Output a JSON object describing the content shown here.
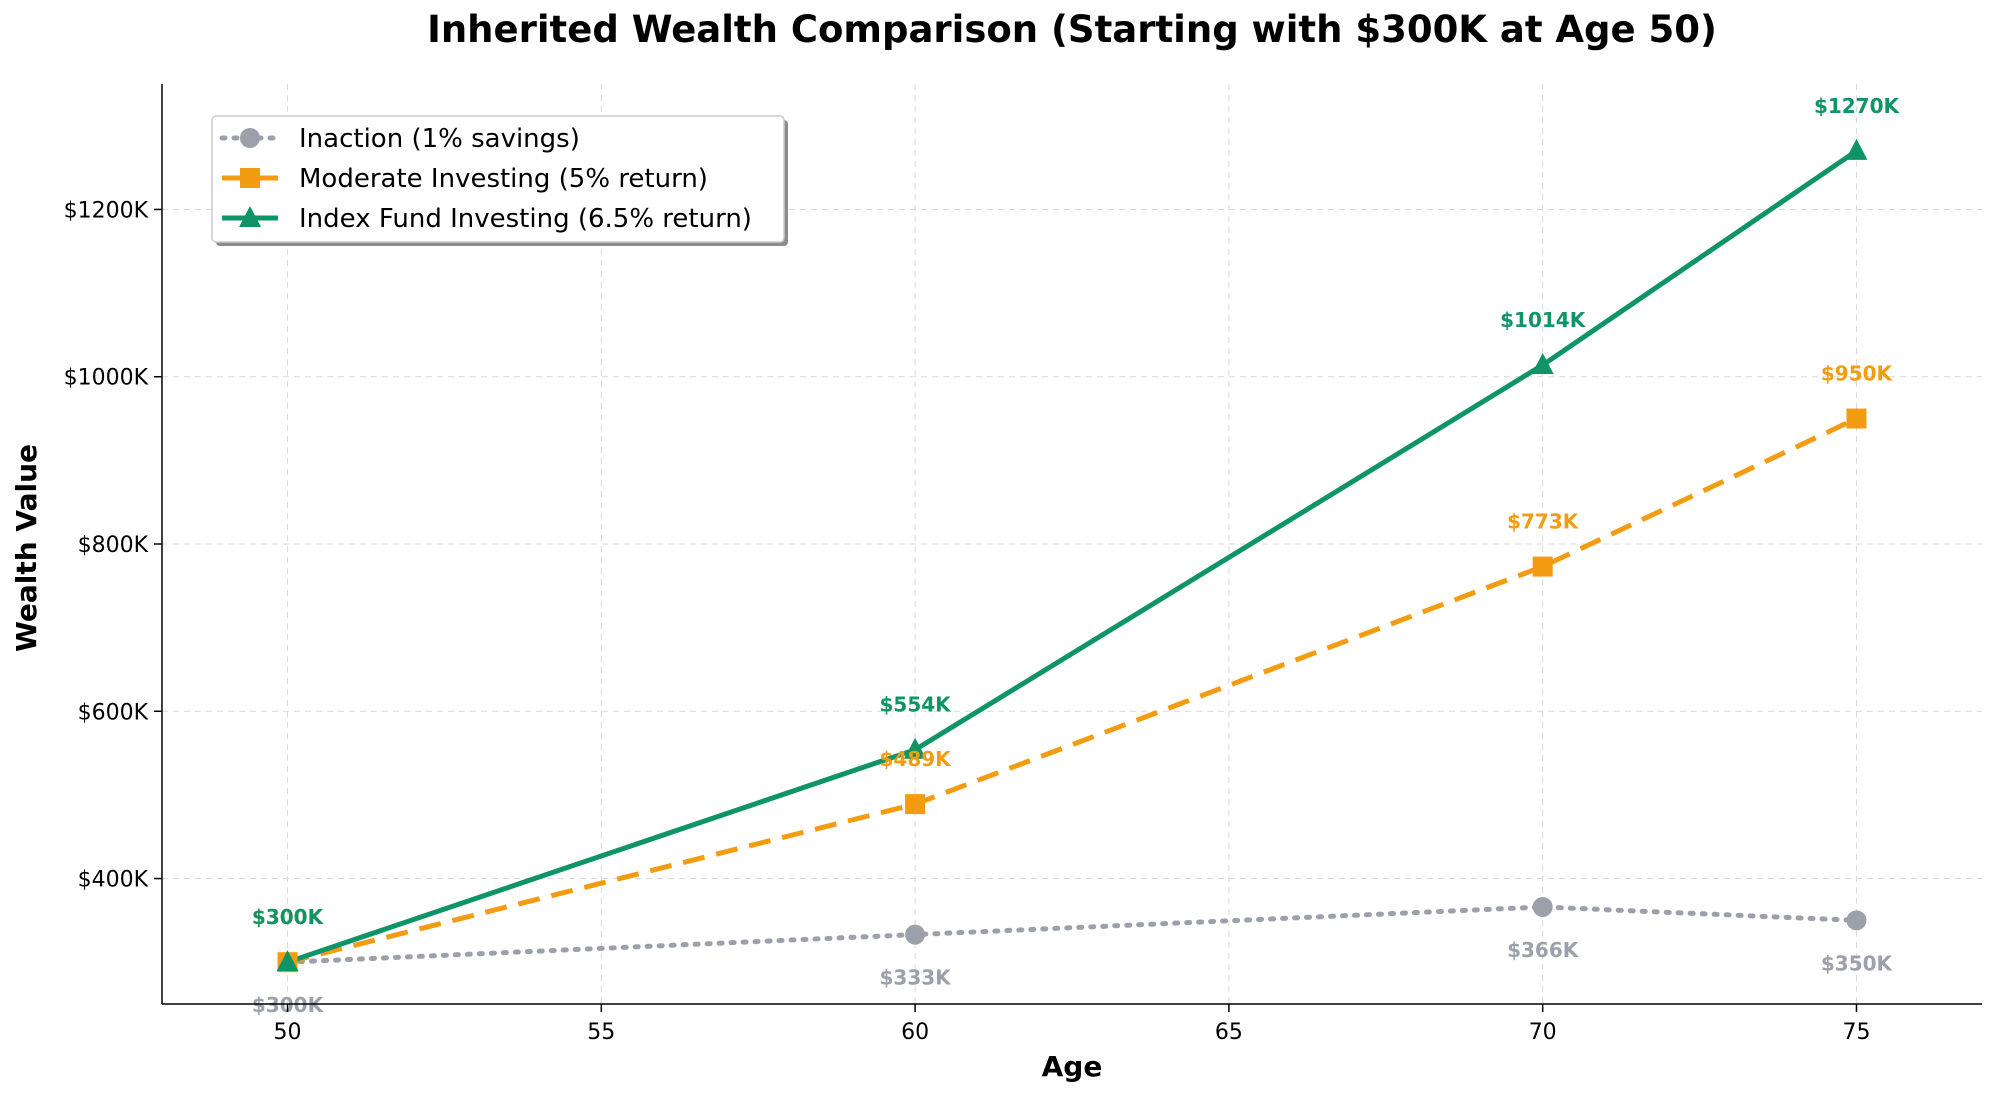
{
  "chart_data": {
    "type": "line",
    "title": "Inherited Wealth Comparison (Starting with $300K at Age 50)",
    "xlabel": "Age",
    "ylabel": "Wealth Value",
    "xlim": [
      48,
      77
    ],
    "ylim": [
      250,
      1350
    ],
    "x_ticks": [
      50,
      55,
      60,
      65,
      70,
      75
    ],
    "x_tick_labels": [
      "50",
      "55",
      "60",
      "65",
      "70",
      "75"
    ],
    "y_ticks": [
      400,
      600,
      800,
      1000,
      1200
    ],
    "y_tick_labels": [
      "$400K",
      "$600K",
      "$800K",
      "$1000K",
      "$1200K"
    ],
    "grid": true,
    "legend_position": "top-left",
    "x": [
      50,
      60,
      70,
      75
    ],
    "series": [
      {
        "name": "Inaction (1% savings)",
        "color": "#9CA0AA",
        "line_style": "dotted",
        "marker": "circle",
        "label_position": "below",
        "values": [
          300,
          333,
          366,
          350
        ],
        "labels": [
          "$300K",
          "$333K",
          "$366K",
          "$350K"
        ]
      },
      {
        "name": "Moderate Investing (5% return)",
        "color": "#F39C12",
        "line_style": "dashed",
        "marker": "square",
        "label_position": "above",
        "values": [
          300,
          489,
          773,
          950
        ],
        "labels": [
          "$300K",
          "$489K",
          "$773K",
          "$950K"
        ]
      },
      {
        "name": "Index Fund Investing (6.5% return)",
        "color": "#0E9466",
        "line_style": "solid",
        "marker": "triangle",
        "label_position": "above",
        "values": [
          300,
          554,
          1014,
          1270
        ],
        "labels": [
          "$300K",
          "$554K",
          "$1014K",
          "$1270K"
        ]
      }
    ]
  }
}
